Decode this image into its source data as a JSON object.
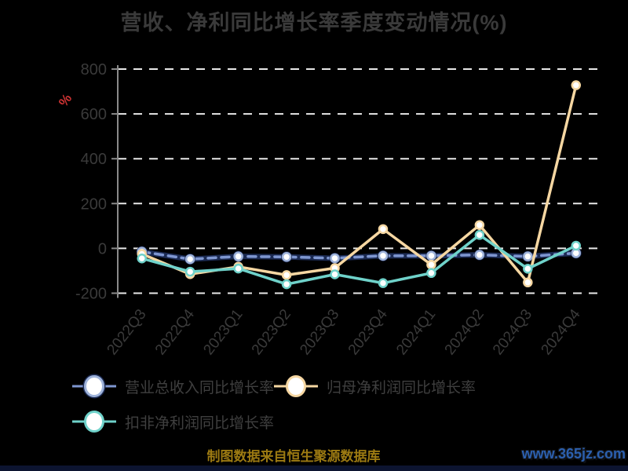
{
  "chart_data": {
    "type": "line",
    "title": "营收、净利同比增长率季度变动情况(%)",
    "ylabel": "%",
    "categories": [
      "2022Q3",
      "2022Q4",
      "2023Q1",
      "2023Q2",
      "2023Q3",
      "2023Q4",
      "2024Q1",
      "2024Q2",
      "2024Q3",
      "2024Q4"
    ],
    "series": [
      {
        "key": "revenue-growth",
        "name": "营业总收入同比增长率",
        "color": "#7e96d0",
        "edge_color": "#1b2a52",
        "marker_ring": "#9fb3da",
        "dashed": true,
        "values": [
          -15,
          -48,
          -36,
          -38,
          -44,
          -33,
          -33,
          -29,
          -36,
          -21
        ]
      },
      {
        "key": "net-profit-growth",
        "name": "归母净利润同比增长率",
        "color": "#f6d7a2",
        "values": [
          -25,
          -115,
          -82,
          -119,
          -88,
          86,
          -73,
          104,
          -152,
          728
        ]
      },
      {
        "key": "deducted-net-profit-growth",
        "name": "扣非净利润同比增长率",
        "color": "#6fd2ca",
        "values": [
          -45,
          -104,
          -90,
          -160,
          -116,
          -155,
          -110,
          60,
          -91,
          12
        ]
      }
    ],
    "ylim": [
      -200,
      800
    ],
    "yticks": [
      800,
      600,
      400,
      200,
      0,
      -200
    ],
    "grid": true,
    "legend_position": "bottom-left"
  },
  "caption": "制图数据来自恒生聚源数据库",
  "watermark": "www.365jz.com",
  "colors": {
    "background": "#000000",
    "title": "#3a3a3a",
    "axis": "#8a8a8a",
    "grid": "#e8e8e8",
    "tick_label": "#3a3a3a",
    "percent": "#cf3333",
    "legend_text": "#3f3f3f",
    "caption": "#9c7a12",
    "watermark": "#2b5fae",
    "footer_bar": "#0c1430"
  }
}
